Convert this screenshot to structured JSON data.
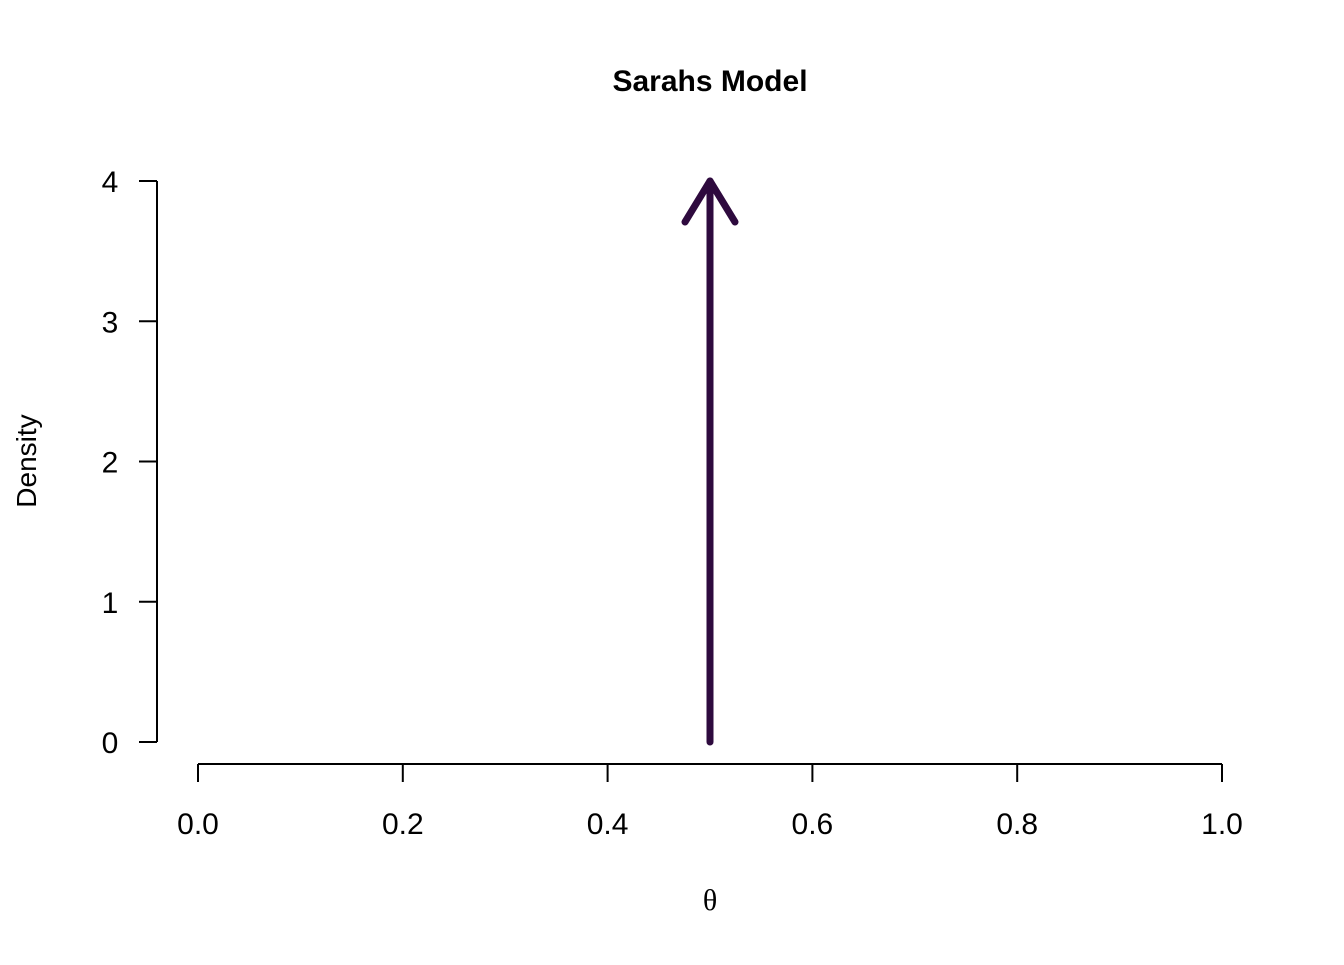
{
  "chart_data": {
    "type": "line",
    "title": "Sarahs Model",
    "xlabel": "θ",
    "ylabel": "Density",
    "xlim": [
      0,
      1
    ],
    "ylim": [
      0,
      4
    ],
    "x_ticks": [
      0.0,
      0.2,
      0.4,
      0.6,
      0.8,
      1.0
    ],
    "x_tick_labels": [
      "0.0",
      "0.2",
      "0.4",
      "0.6",
      "0.8",
      "1.0"
    ],
    "y_ticks": [
      0,
      1,
      2,
      3,
      4
    ],
    "y_tick_labels": [
      "0",
      "1",
      "2",
      "3",
      "4"
    ],
    "grid": false,
    "series": [
      {
        "style": "arrow",
        "color": "#2e0a3e",
        "x": [
          0.5,
          0.5
        ],
        "y": [
          0,
          4
        ]
      }
    ]
  }
}
